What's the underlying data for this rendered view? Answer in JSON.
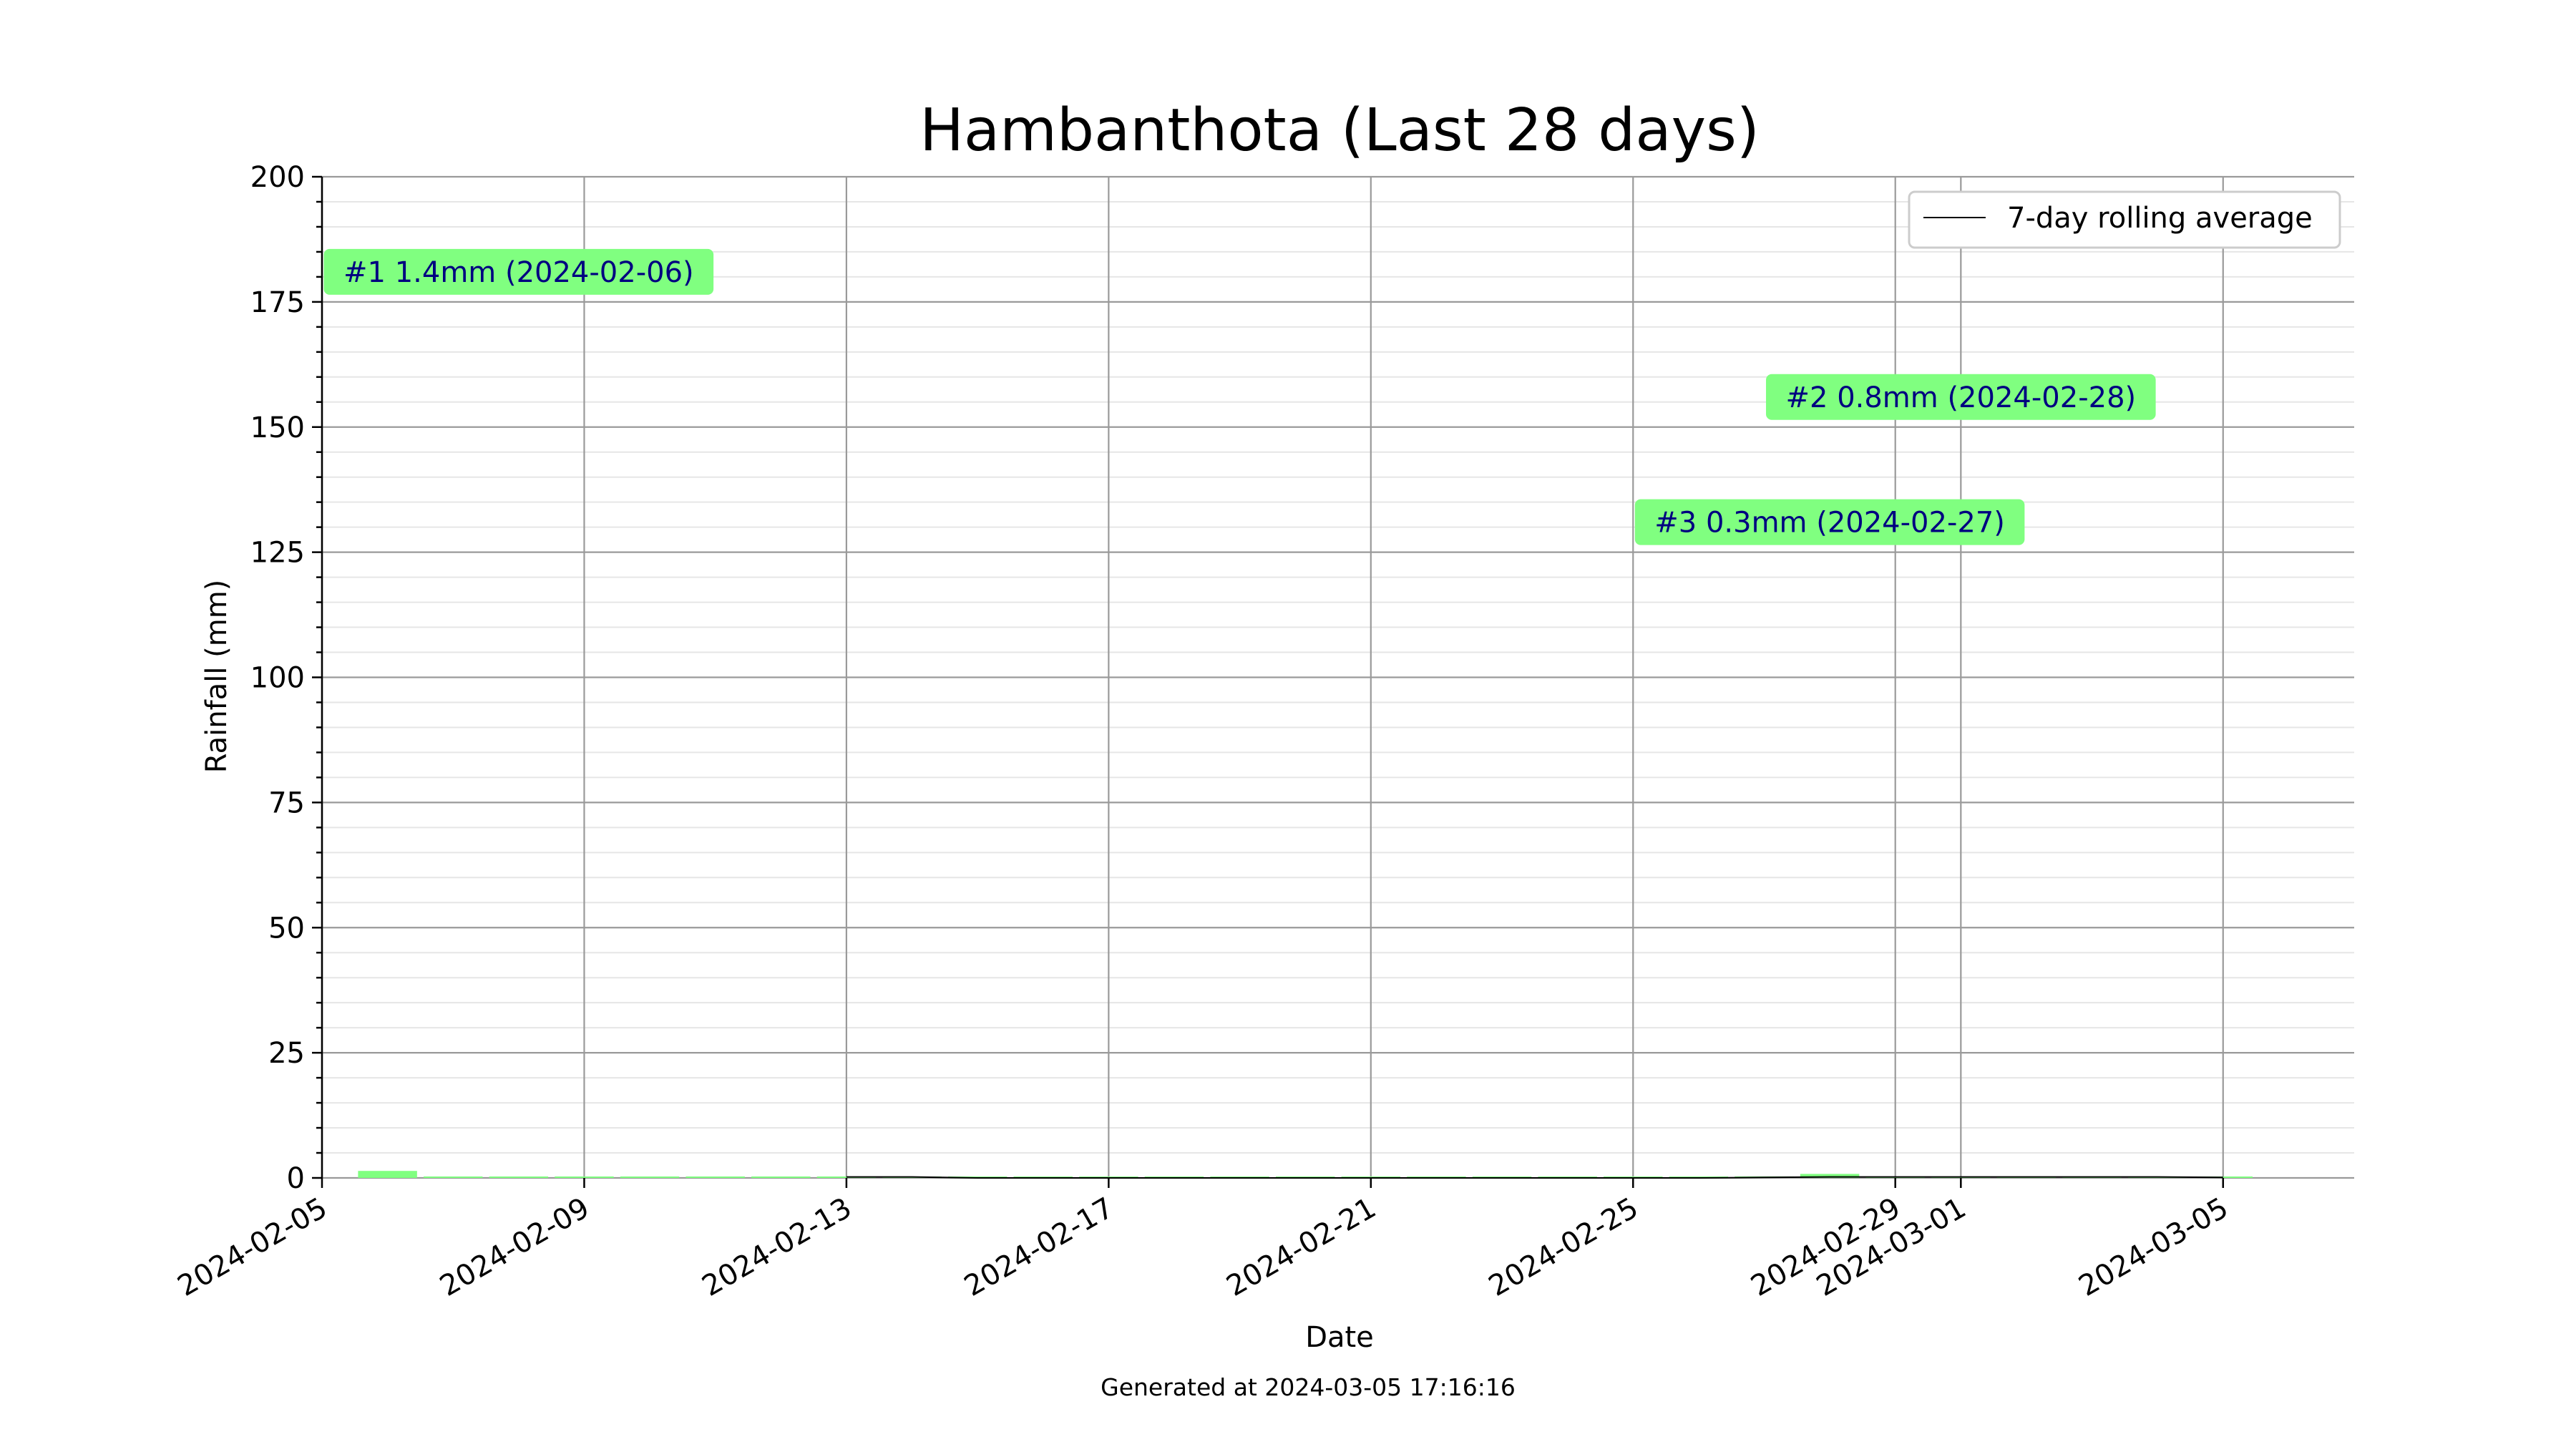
{
  "chart_data": {
    "type": "bar",
    "title": "Hambanthota (Last 28 days)",
    "xlabel": "Date",
    "ylabel": "Rainfall (mm)",
    "ylim": [
      0,
      200
    ],
    "xlim": [
      "2024-02-05",
      "2024-03-07"
    ],
    "x_ticks": [
      "2024-02-05",
      "2024-02-09",
      "2024-02-13",
      "2024-02-17",
      "2024-02-21",
      "2024-02-25",
      "2024-02-29",
      "2024-03-01",
      "2024-03-05"
    ],
    "y_ticks": [
      0,
      25,
      50,
      75,
      100,
      125,
      150,
      175,
      200
    ],
    "y_minor_step": 5,
    "grid": true,
    "bar_color": "#80ff80",
    "line_color": "#000000",
    "annotation_color": "#80ff80",
    "annotation_text_color": "#000080",
    "legend": {
      "position": "top-right",
      "entries": [
        "7-day rolling average"
      ]
    },
    "series": [
      {
        "type": "bar",
        "dates": [
          "2024-02-06",
          "2024-02-07",
          "2024-02-08",
          "2024-02-09",
          "2024-02-10",
          "2024-02-11",
          "2024-02-12",
          "2024-02-13",
          "2024-02-14",
          "2024-02-15",
          "2024-02-16",
          "2024-02-17",
          "2024-02-18",
          "2024-02-19",
          "2024-02-20",
          "2024-02-21",
          "2024-02-22",
          "2024-02-23",
          "2024-02-24",
          "2024-02-25",
          "2024-02-26",
          "2024-02-27",
          "2024-02-28",
          "2024-02-29",
          "2024-03-01",
          "2024-03-02",
          "2024-03-03",
          "2024-03-04",
          "2024-03-05"
        ],
        "values": [
          1.4,
          0,
          0,
          0,
          0,
          0,
          0,
          0,
          0,
          0.1,
          0,
          0,
          0,
          0,
          0,
          0,
          0,
          0.1,
          0,
          0,
          0,
          0.3,
          0.8,
          0,
          0,
          0,
          0,
          0,
          0
        ]
      },
      {
        "type": "line",
        "name": "7-day rolling average",
        "dates": [
          "2024-02-13",
          "2024-02-14",
          "2024-02-15",
          "2024-02-16",
          "2024-02-17",
          "2024-02-18",
          "2024-02-19",
          "2024-02-20",
          "2024-02-21",
          "2024-02-22",
          "2024-02-23",
          "2024-02-24",
          "2024-02-25",
          "2024-02-26",
          "2024-02-27",
          "2024-02-28",
          "2024-02-29",
          "2024-03-01",
          "2024-03-02",
          "2024-03-03",
          "2024-03-04",
          "2024-03-05"
        ],
        "values": [
          0.2,
          0.2,
          0.0,
          0.0,
          0.0,
          0.0,
          0.0,
          0.0,
          0.0,
          0.0,
          0.0,
          0.0,
          0.0,
          0.0,
          0.1,
          0.2,
          0.2,
          0.2,
          0.2,
          0.2,
          0.2,
          0.1
        ]
      }
    ],
    "annotations": [
      {
        "text": "#1 1.4mm (2024-02-06)",
        "date": "2024-02-08",
        "y": 181
      },
      {
        "text": "#2 0.8mm (2024-02-28)",
        "date": "2024-03-01",
        "y": 156
      },
      {
        "text": "#3 0.3mm (2024-02-27)",
        "date": "2024-02-28",
        "y": 131
      }
    ]
  },
  "footer": "Generated at 2024-03-05 17:16:16"
}
